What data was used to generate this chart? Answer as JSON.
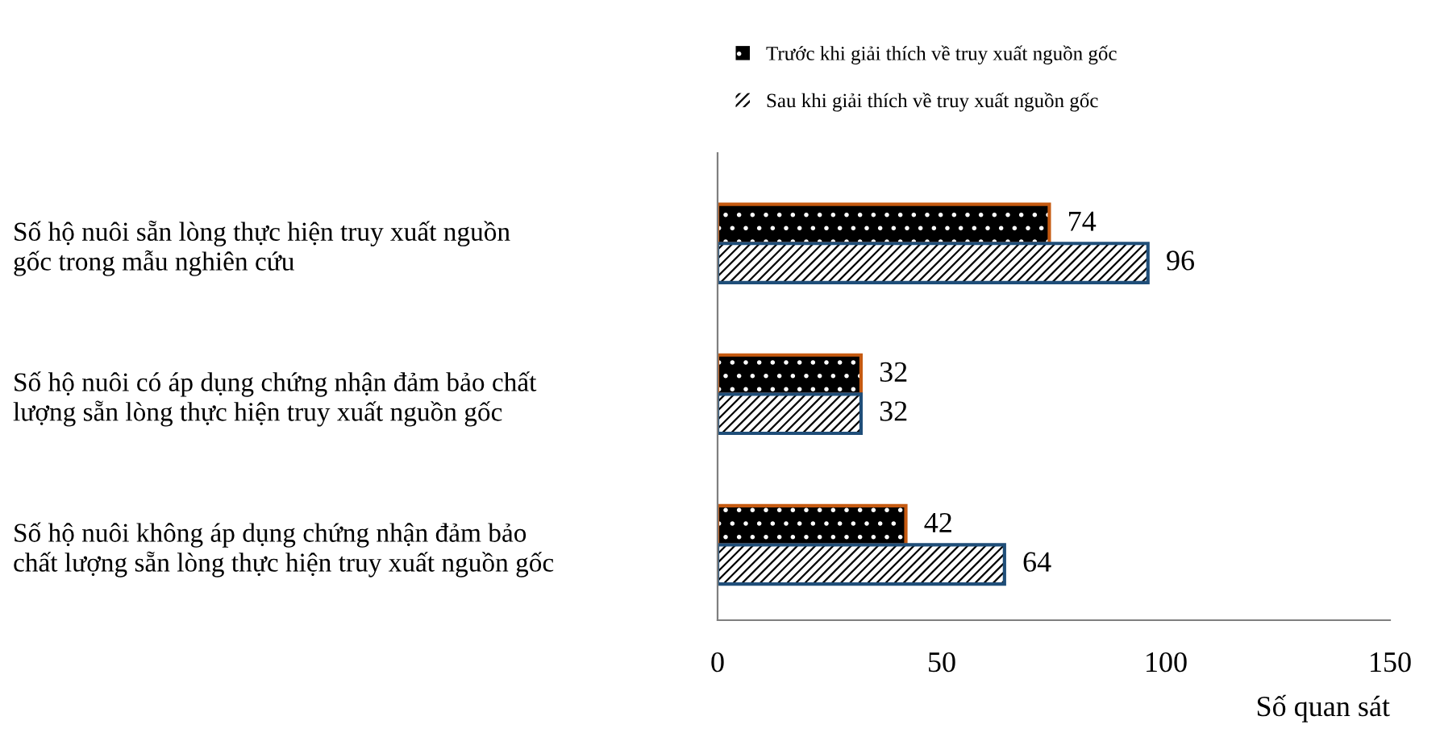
{
  "chart_data": {
    "type": "bar",
    "orientation": "horizontal",
    "categories": [
      "Số hộ nuôi sẵn lòng thực hiện truy xuất nguồn\ngốc trong mẫu nghiên cứu",
      "Số hộ nuôi có áp dụng chứng nhận đảm bảo chất\nlượng sẵn lòng thực hiện truy xuất nguồn gốc",
      "Số hộ nuôi không áp dụng chứng nhận đảm bảo\nchất lượng sẵn lòng thực hiện truy xuất nguồn gốc"
    ],
    "series": [
      {
        "name": "Trước khi giải thích về truy xuất nguồn gốc",
        "color": "#000000",
        "values": [
          74,
          32,
          42
        ]
      },
      {
        "name": "Sau khi giải thích về truy xuất nguồn gốc",
        "color": "#ffffff",
        "values": [
          96,
          32,
          64
        ]
      }
    ],
    "xlim": [
      0,
      150
    ],
    "xticks": [
      0,
      50,
      100,
      150
    ],
    "xlabel": "Số quan sát",
    "data_labels": true,
    "legend": "top",
    "grid": false
  }
}
